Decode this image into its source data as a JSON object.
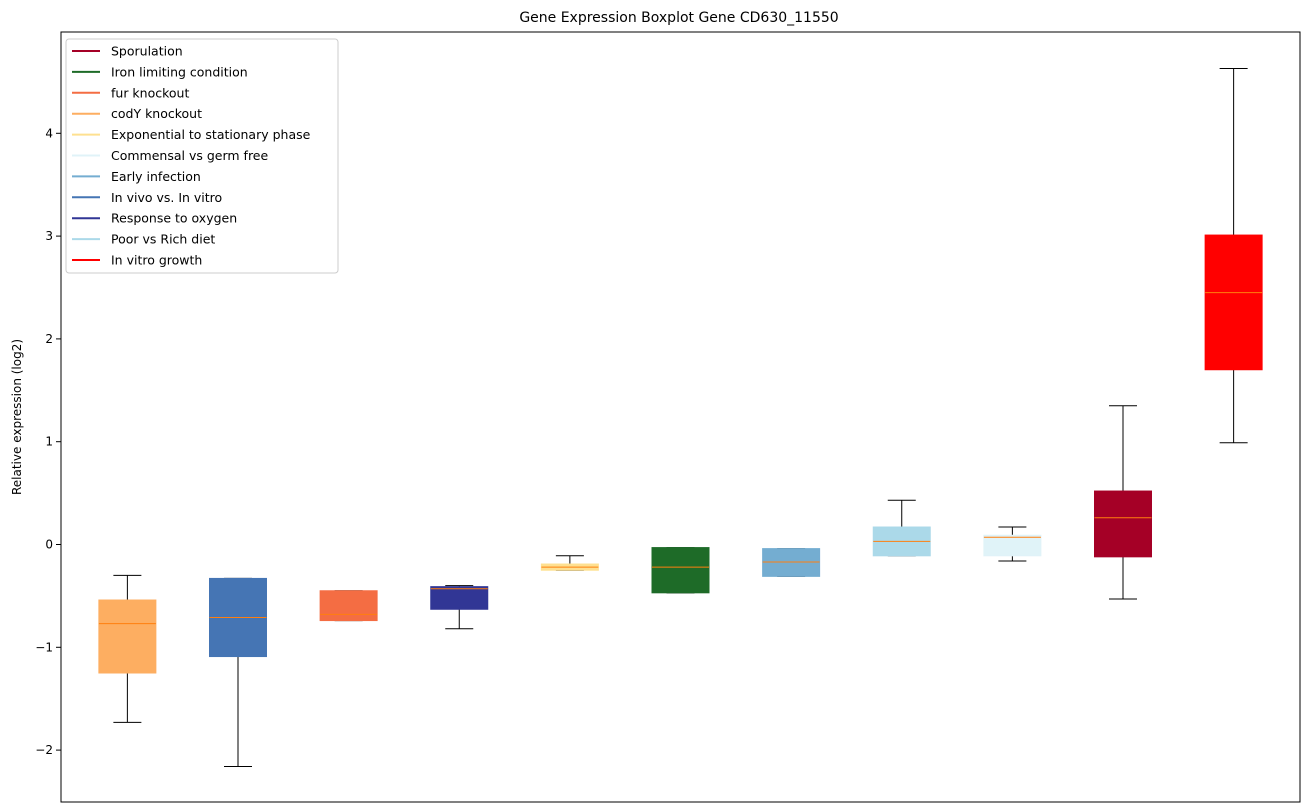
{
  "chart_data": {
    "type": "boxplot",
    "title": "Gene Expression Boxplot Gene CD630_11550",
    "xlabel": "",
    "ylabel": "Relative expression (log2)",
    "ylim": [
      -2.5,
      5.0
    ],
    "yticks": [
      -2,
      -1,
      0,
      1,
      2,
      3,
      4
    ],
    "ytick_labels": [
      "−2",
      "−1",
      "0",
      "1",
      "2",
      "3",
      "4"
    ],
    "grid": false,
    "legend_position": "top-left",
    "median_color": "#ff7f0e",
    "legend": [
      {
        "label": "Sporulation",
        "color": "#a50026"
      },
      {
        "label": "Iron limiting condition",
        "color": "#1e6b28"
      },
      {
        "label": "fur knockout",
        "color": "#f46d43"
      },
      {
        "label": "codY knockout",
        "color": "#fdae61"
      },
      {
        "label": "Exponential to stationary phase",
        "color": "#fee090"
      },
      {
        "label": "Commensal vs germ free",
        "color": "#e0f3f8"
      },
      {
        "label": "Early infection",
        "color": "#74add1"
      },
      {
        "label": "In vivo vs. In vitro",
        "color": "#4575b4"
      },
      {
        "label": "Response to oxygen",
        "color": "#313695"
      },
      {
        "label": "Poor vs Rich diet",
        "color": "#abd9e9"
      },
      {
        "label": "In vitro growth",
        "color": "#ff0000"
      }
    ],
    "boxes": [
      {
        "group": "codY knockout",
        "color": "#fdae61",
        "whisker_low": -1.73,
        "q1": -1.25,
        "median": -0.77,
        "q3": -0.54,
        "whisker_high": -0.3
      },
      {
        "group": "In vivo vs. In vitro",
        "color": "#4575b4",
        "whisker_low": -2.16,
        "q1": -1.09,
        "median": -0.71,
        "q3": -0.33,
        "whisker_high": -0.33
      },
      {
        "group": "fur knockout",
        "color": "#f46d43",
        "whisker_low": -0.74,
        "q1": -0.74,
        "median": -0.68,
        "q3": -0.45,
        "whisker_high": -0.45
      },
      {
        "group": "Response to oxygen",
        "color": "#313695",
        "whisker_low": -0.82,
        "q1": -0.63,
        "median": -0.43,
        "q3": -0.41,
        "whisker_high": -0.4
      },
      {
        "group": "Exponential to stationary phase",
        "color": "#fee090",
        "whisker_low": -0.25,
        "q1": -0.25,
        "median": -0.22,
        "q3": -0.19,
        "whisker_high": -0.11
      },
      {
        "group": "Iron limiting condition",
        "color": "#1e6b28",
        "whisker_low": -0.47,
        "q1": -0.47,
        "median": -0.22,
        "q3": -0.03,
        "whisker_high": -0.03
      },
      {
        "group": "Early infection",
        "color": "#74add1",
        "whisker_low": -0.31,
        "q1": -0.31,
        "median": -0.17,
        "q3": -0.04,
        "whisker_high": -0.04
      },
      {
        "group": "Poor vs Rich diet",
        "color": "#abd9e9",
        "whisker_low": -0.11,
        "q1": -0.11,
        "median": 0.03,
        "q3": 0.17,
        "whisker_high": 0.43
      },
      {
        "group": "Commensal vs germ free",
        "color": "#e0f3f8",
        "whisker_low": -0.16,
        "q1": -0.11,
        "median": 0.07,
        "q3": 0.09,
        "whisker_high": 0.17
      },
      {
        "group": "Sporulation",
        "color": "#a50026",
        "whisker_low": -0.53,
        "q1": -0.12,
        "median": 0.26,
        "q3": 0.52,
        "whisker_high": 1.35
      },
      {
        "group": "In vitro growth",
        "color": "#ff0000",
        "whisker_low": 0.99,
        "q1": 1.7,
        "median": 2.45,
        "q3": 3.01,
        "whisker_high": 4.63
      }
    ]
  }
}
